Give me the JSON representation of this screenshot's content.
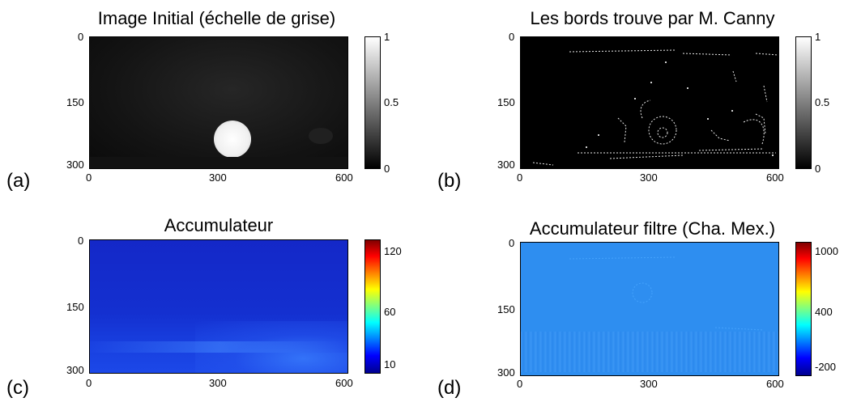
{
  "panels": [
    {
      "label": "(a)",
      "title": "Image Initial (échelle de grise)",
      "y_ticks": [
        "0",
        "150",
        "300"
      ],
      "x_ticks": [
        "0",
        "300",
        "600"
      ],
      "colorbar": {
        "colormap": "gray",
        "ticks": [
          "1",
          "0.5",
          "0"
        ]
      }
    },
    {
      "label": "(b)",
      "title": "Les bords trouve par M. Canny",
      "y_ticks": [
        "0",
        "150",
        "300"
      ],
      "x_ticks": [
        "0",
        "300",
        "600"
      ],
      "colorbar": {
        "colormap": "gray",
        "ticks": [
          "1",
          "0.5",
          "0"
        ]
      }
    },
    {
      "label": "(c)",
      "title": "Accumulateur",
      "y_ticks": [
        "0",
        "150",
        "300"
      ],
      "x_ticks": [
        "0",
        "300",
        "600"
      ],
      "colorbar": {
        "colormap": "jet",
        "ticks": [
          "120",
          "60",
          "10"
        ]
      }
    },
    {
      "label": "(d)",
      "title": "Accumulateur filtre (Cha. Mex.)",
      "y_ticks": [
        "0",
        "150",
        "300"
      ],
      "x_ticks": [
        "0",
        "300",
        "600"
      ],
      "colorbar": {
        "colormap": "jet",
        "ticks": [
          "1000",
          "400",
          "-200"
        ]
      }
    }
  ],
  "colors": {
    "jet_low": "#00008f",
    "jet_mid": "#00ffff",
    "jet_high": "#800000",
    "background": "#ffffff"
  }
}
